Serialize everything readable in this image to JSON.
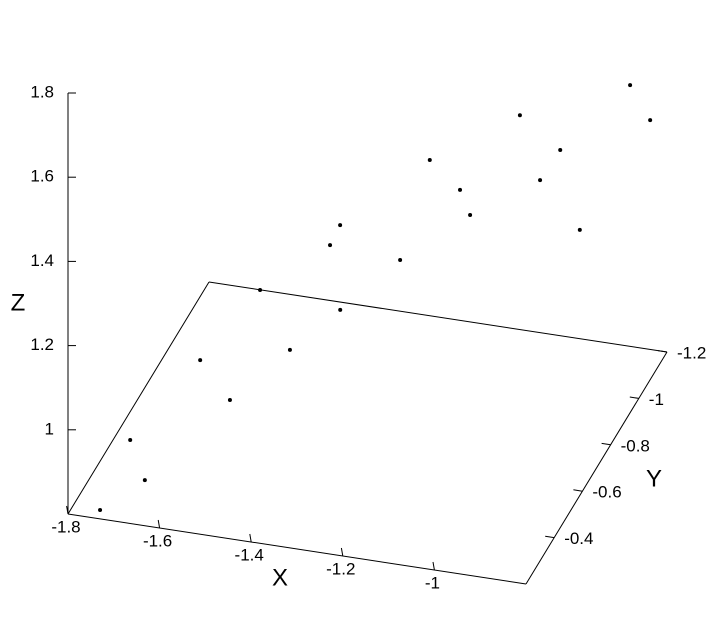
{
  "chart_data": {
    "type": "scatter3d",
    "xlabel": "X",
    "ylabel": "Y",
    "zlabel": "Z",
    "xlim": [
      -1.8,
      -0.8
    ],
    "ylim": [
      -0.2,
      -1.2
    ],
    "zlim": [
      0.8,
      1.8
    ],
    "xticks": [
      -1.8,
      -1.6,
      -1.4,
      -1.2,
      -1
    ],
    "yticks": [
      -1.2,
      -1,
      -0.8,
      -0.6,
      -0.4
    ],
    "zticks": [
      1,
      1.2,
      1.4,
      1.6,
      1.8
    ],
    "color": "#000000",
    "series": [
      {
        "x": [
          -1.695,
          -1.573,
          -1.473,
          -1.329,
          -1.164,
          -0.998,
          -0.819,
          -1.377,
          -1.298,
          -1.198,
          -1.076,
          -0.954,
          -1.351,
          -1.098,
          -0.91,
          -0.806,
          -1.73,
          -1.663,
          -1.508,
          -0.898
        ],
        "y": [
          -0.3,
          -0.4,
          -0.5,
          -0.6,
          -0.7,
          -0.8,
          -1.0,
          -0.4,
          -0.5,
          -0.6,
          -0.7,
          -0.8,
          -0.6,
          -0.7,
          -0.8,
          -1.1,
          -0.2,
          -0.3,
          -0.4,
          -0.9
        ],
        "z": [
          0.938,
          1.093,
          1.221,
          1.344,
          1.471,
          1.55,
          1.541,
          1.15,
          1.203,
          1.283,
          1.355,
          1.403,
          1.293,
          1.411,
          1.482,
          1.405,
          0.821,
          0.848,
          1.009,
          1.239
        ]
      }
    ]
  }
}
